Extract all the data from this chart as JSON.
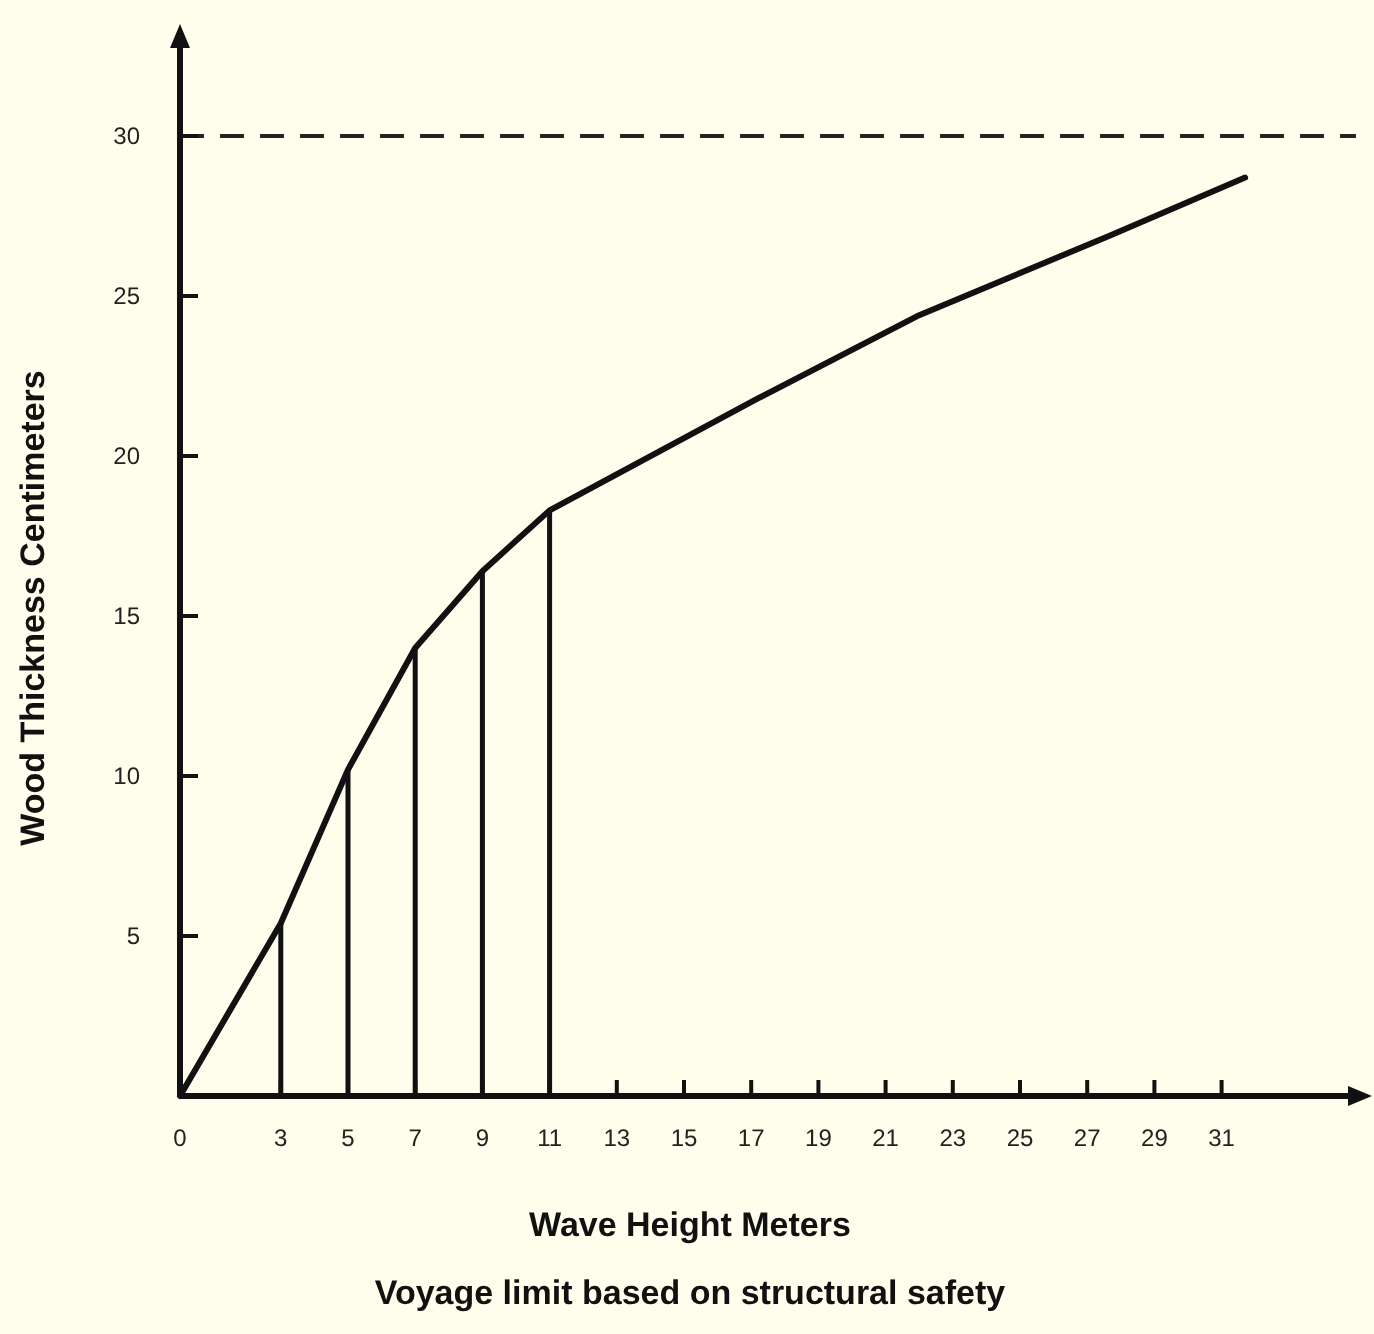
{
  "chart_data": {
    "type": "line",
    "xlabel": "Wave Height Meters",
    "ylabel": "Wood Thickness Centimeters",
    "annotations": [
      "Voyage limit based on structural safety"
    ],
    "xlim": [
      0,
      35
    ],
    "ylim": [
      0,
      33
    ],
    "xticks": [
      0,
      3,
      5,
      7,
      9,
      11,
      13,
      15,
      17,
      19,
      21,
      23,
      25,
      27,
      29,
      31
    ],
    "yticks": [
      5,
      10,
      15,
      20,
      25,
      30
    ],
    "series": [
      {
        "color": "#111111",
        "x": [
          0,
          3,
          5,
          7,
          9,
          11,
          17.2,
          22,
          27.7,
          31.7
        ],
        "values": [
          0,
          5.4,
          10.2,
          14,
          16.4,
          18.3,
          21.8,
          24.4,
          26.9,
          28.7
        ]
      },
      {
        "type": "bar",
        "color": "#111111",
        "x": [
          3,
          5,
          7,
          9,
          11
        ],
        "values": [
          5.4,
          10.2,
          14,
          16.4,
          18.3
        ]
      }
    ],
    "ref_lines": [
      {
        "axis": "y",
        "value": 30,
        "line_style": "dashed",
        "color": "#222222"
      }
    ]
  }
}
